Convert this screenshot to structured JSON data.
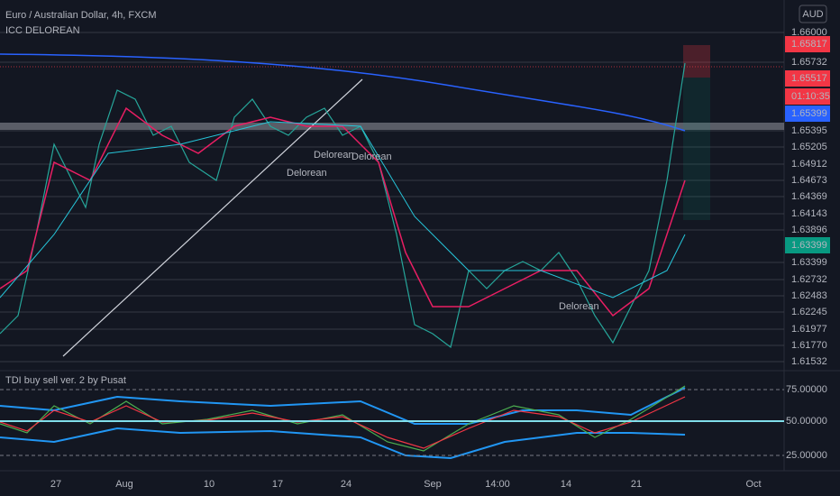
{
  "header": {
    "symbol": "Euro / Australian Dollar, 4h, FXCM",
    "indicator": "ICC DELOREAN",
    "currency": "AUD"
  },
  "price_levels": [
    "1.66000",
    "1.65732",
    "1.65395",
    "1.65205",
    "1.64912",
    "1.64673",
    "1.64369",
    "1.64143",
    "1.63896",
    "1.63399",
    "1.62732",
    "1.62483",
    "1.62245",
    "1.61977",
    "1.61770",
    "1.61532"
  ],
  "badges": [
    {
      "label": "1.65817",
      "color": "#f23645"
    },
    {
      "label": "1.65517",
      "color": "#f23645"
    },
    {
      "label": "01:10:35",
      "color": "#f23645"
    },
    {
      "label": "1.65399",
      "color": "#2962ff"
    },
    {
      "label": "1.63399",
      "color": "#089981"
    }
  ],
  "annotations": [
    "Delorean",
    "Delorean",
    "Delorean",
    "Delorean"
  ],
  "sub_panel": {
    "title": "TDI buy sell ver. 2 by Pusat",
    "levels": [
      "75.00000",
      "50.00000",
      "25.00000"
    ]
  },
  "x_labels": [
    "27",
    "Aug",
    "10",
    "17",
    "24",
    "Sep",
    "14:00",
    "14",
    "21",
    "Oct"
  ]
}
